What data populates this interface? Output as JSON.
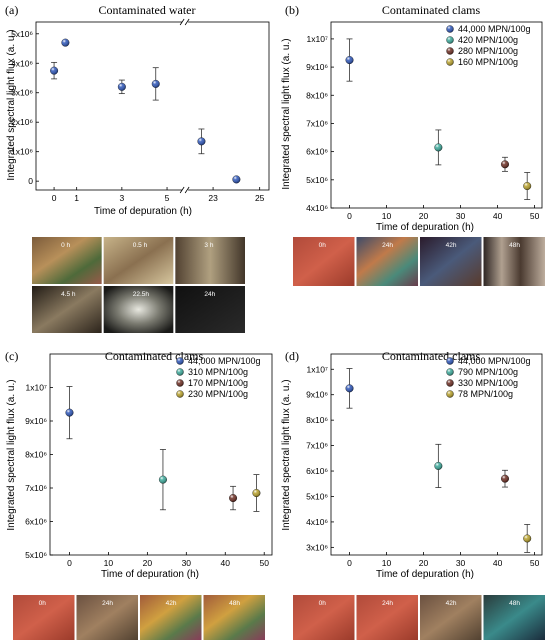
{
  "figure": {
    "charts": [
      {
        "id": "a",
        "panel_label": "(a)",
        "title": "Contaminated water",
        "xlabel": "Time of depuration (h)",
        "ylabel": "Integrated spectral light flux (a. u.)",
        "photo_labels": [
          "0 h",
          "0.5 h",
          "3 h",
          "4.5 h",
          "22.5h",
          "24h"
        ]
      },
      {
        "id": "b",
        "panel_label": "(b)",
        "title": "Contaminated clams",
        "xlabel": "Time of depuration (h)",
        "ylabel": "Integrated spectral light flux (a. u.)",
        "photo_labels": [
          "0h",
          "24h",
          "42h",
          "48h"
        ]
      },
      {
        "id": "c",
        "panel_label": "(c)",
        "title": "Contaminated clams",
        "xlabel": "Time of depuration (h)",
        "ylabel": "Integrated spectral light flux (a. u.)",
        "photo_labels": [
          "0h",
          "24h",
          "42h",
          "48h"
        ]
      },
      {
        "id": "d",
        "panel_label": "(d)",
        "title": "Contaminated clams",
        "xlabel": "Time of depuration (h)",
        "ylabel": "Integrated spectral light flux (a. u.)",
        "photo_labels": [
          "0h",
          "24h",
          "42h",
          "48h"
        ]
      }
    ]
  },
  "chart_data": [
    {
      "panel": "a",
      "type": "scatter",
      "title": "Contaminated water",
      "xlabel": "Time of depuration (h)",
      "ylabel": "Integrated spectral light flux (a. u.)",
      "axis_break": [
        5.8,
        21.8
      ],
      "x_ticks": [
        "0",
        "1",
        "3",
        "5",
        "23",
        "25"
      ],
      "y_ticks": [
        "0",
        "1x10⁶",
        "2x10⁶",
        "3x10⁶",
        "4x10⁶",
        "5x10⁶"
      ],
      "ylim": [
        -300000,
        5400000
      ],
      "points": [
        {
          "x": 0,
          "y": 3750000,
          "err": 280000
        },
        {
          "x": 0.5,
          "y": 4700000,
          "err": 70000
        },
        {
          "x": 3,
          "y": 3200000,
          "err": 230000
        },
        {
          "x": 4.5,
          "y": 3300000,
          "err": 550000
        },
        {
          "x": 22.5,
          "y": 1350000,
          "err": 420000
        },
        {
          "x": 24,
          "y": 60000,
          "err": 40000
        }
      ],
      "color": "#2b54b8"
    },
    {
      "panel": "b",
      "type": "scatter",
      "title": "Contaminated clams",
      "xlabel": "Time of depuration (h)",
      "ylabel": "Integrated spectral light flux (a. u.)",
      "xlim": [
        -5,
        52
      ],
      "x_ticks": [
        "0",
        "10",
        "20",
        "30",
        "40",
        "50"
      ],
      "ylim": [
        4000000,
        10600000
      ],
      "y_ticks": [
        "4x10⁶",
        "5x10⁶",
        "6x10⁶",
        "7x10⁶",
        "8x10⁶",
        "9x10⁶",
        "1x10⁷"
      ],
      "legend_position": "top-right",
      "series": [
        {
          "name": "44,000 MPN/100g",
          "color": "#2b54b8",
          "x": 0,
          "y": 9250000,
          "err": 750000
        },
        {
          "name": "420 MPN/100g",
          "color": "#3aa99a",
          "x": 24,
          "y": 6150000,
          "err": 620000
        },
        {
          "name": "280 MPN/100g",
          "color": "#6b2b20",
          "x": 42,
          "y": 5550000,
          "err": 250000
        },
        {
          "name": "160 MPN/100g",
          "color": "#b8a12a",
          "x": 48,
          "y": 4780000,
          "err": 480000
        }
      ]
    },
    {
      "panel": "c",
      "type": "scatter",
      "title": "Contaminated clams",
      "xlabel": "Time of depuration (h)",
      "ylabel": "Integrated spectral light flux (a. u.)",
      "xlim": [
        -5,
        52
      ],
      "x_ticks": [
        "0",
        "10",
        "20",
        "30",
        "40",
        "50"
      ],
      "ylim": [
        5000000,
        11000000
      ],
      "y_ticks": [
        "5x10⁶",
        "6x10⁶",
        "7x10⁶",
        "8x10⁶",
        "9x10⁶",
        "1x10⁷"
      ],
      "legend_position": "top-right",
      "series": [
        {
          "name": "44,000 MPN/100g",
          "color": "#2b54b8",
          "x": 0,
          "y": 9250000,
          "err": 780000
        },
        {
          "name": "310 MPN/100g",
          "color": "#3aa99a",
          "x": 24,
          "y": 7250000,
          "err": 900000
        },
        {
          "name": "170 MPN/100g",
          "color": "#6b2b20",
          "x": 42,
          "y": 6700000,
          "err": 350000
        },
        {
          "name": "230 MPN/100g",
          "color": "#b8a12a",
          "x": 48,
          "y": 6850000,
          "err": 550000
        }
      ]
    },
    {
      "panel": "d",
      "type": "scatter",
      "title": "Contaminated clams",
      "xlabel": "Time of depuration (h)",
      "ylabel": "Integrated spectral light flux (a. u.)",
      "xlim": [
        -5,
        52
      ],
      "x_ticks": [
        "0",
        "10",
        "20",
        "30",
        "40",
        "50"
      ],
      "ylim": [
        2700000,
        10600000
      ],
      "y_ticks": [
        "3x10⁶",
        "4x10⁶",
        "5x10⁶",
        "6x10⁶",
        "7x10⁶",
        "8x10⁶",
        "9x10⁶",
        "1x10⁷"
      ],
      "legend_position": "top-right",
      "series": [
        {
          "name": "44,000 MPN/100g",
          "color": "#2b54b8",
          "x": 0,
          "y": 9250000,
          "err": 780000
        },
        {
          "name": "790 MPN/100g",
          "color": "#3aa99a",
          "x": 24,
          "y": 6200000,
          "err": 850000
        },
        {
          "name": "330 MPN/100g",
          "color": "#6b2b20",
          "x": 42,
          "y": 5700000,
          "err": 330000
        },
        {
          "name": "78 MPN/100g",
          "color": "#b8a12a",
          "x": 48,
          "y": 3350000,
          "err": 550000
        }
      ]
    }
  ]
}
